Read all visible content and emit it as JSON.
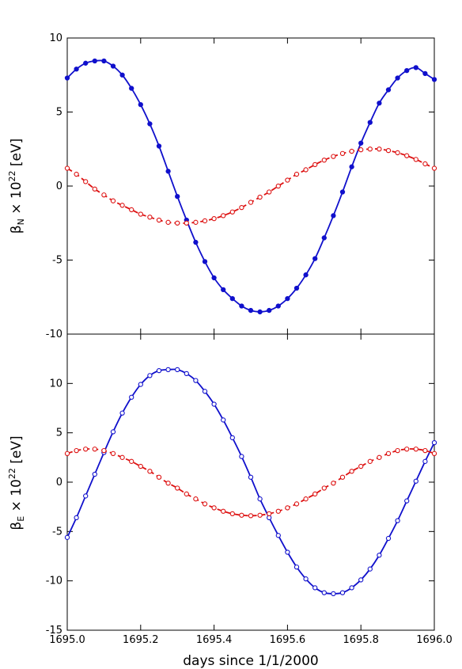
{
  "chart_data": [
    {
      "type": "line",
      "panel": "top",
      "ylabel": {
        "base": "β",
        "sub": "N",
        "mid": " × 10",
        "sup": "22",
        "tail": " [eV]"
      },
      "xlim": [
        1695.0,
        1696.0
      ],
      "ylim": [
        -10,
        10
      ],
      "yticks": [
        10,
        5,
        0,
        -5,
        -10
      ],
      "ytick_labels": [
        "10",
        "5",
        "0",
        "-5",
        "-10"
      ],
      "grid": false,
      "series": [
        {
          "marker": "filled-circle",
          "line": "solid",
          "color": "#1010cc",
          "x": [
            1695.0,
            1695.025,
            1695.05,
            1695.075,
            1695.1,
            1695.125,
            1695.15,
            1695.175,
            1695.2,
            1695.225,
            1695.25,
            1695.275,
            1695.3,
            1695.325,
            1695.35,
            1695.375,
            1695.4,
            1695.425,
            1695.45,
            1695.475,
            1695.5,
            1695.525,
            1695.55,
            1695.575,
            1695.6,
            1695.625,
            1695.65,
            1695.675,
            1695.7,
            1695.725,
            1695.75,
            1695.775,
            1695.8,
            1695.825,
            1695.85,
            1695.875,
            1695.9,
            1695.925,
            1695.95,
            1695.975,
            1696.0
          ],
          "y": [
            7.3,
            7.9,
            8.3,
            8.45,
            8.45,
            8.1,
            7.5,
            6.6,
            5.5,
            4.2,
            2.7,
            1.0,
            -0.7,
            -2.3,
            -3.8,
            -5.1,
            -6.2,
            -7.0,
            -7.6,
            -8.1,
            -8.4,
            -8.5,
            -8.4,
            -8.1,
            -7.6,
            -6.9,
            -6.0,
            -4.9,
            -3.5,
            -2.0,
            -0.4,
            1.3,
            2.9,
            4.3,
            5.6,
            6.5,
            7.3,
            7.8,
            8.0,
            7.6,
            7.2
          ]
        },
        {
          "marker": "open-circle",
          "line": "dashed",
          "color": "#dd1010",
          "x": [
            1695.0,
            1695.025,
            1695.05,
            1695.075,
            1695.1,
            1695.125,
            1695.15,
            1695.175,
            1695.2,
            1695.225,
            1695.25,
            1695.275,
            1695.3,
            1695.325,
            1695.35,
            1695.375,
            1695.4,
            1695.425,
            1695.45,
            1695.475,
            1695.5,
            1695.525,
            1695.55,
            1695.575,
            1695.6,
            1695.625,
            1695.65,
            1695.675,
            1695.7,
            1695.725,
            1695.75,
            1695.775,
            1695.8,
            1695.825,
            1695.85,
            1695.875,
            1695.9,
            1695.925,
            1695.95,
            1695.975,
            1696.0
          ],
          "y": [
            1.2,
            0.8,
            0.3,
            -0.2,
            -0.6,
            -1.0,
            -1.3,
            -1.6,
            -1.9,
            -2.1,
            -2.3,
            -2.45,
            -2.5,
            -2.5,
            -2.45,
            -2.35,
            -2.2,
            -2.0,
            -1.75,
            -1.45,
            -1.1,
            -0.75,
            -0.4,
            0.0,
            0.4,
            0.8,
            1.1,
            1.45,
            1.75,
            2.0,
            2.2,
            2.35,
            2.45,
            2.5,
            2.5,
            2.4,
            2.25,
            2.05,
            1.8,
            1.5,
            1.2
          ]
        }
      ]
    },
    {
      "type": "line",
      "panel": "bottom",
      "ylabel": {
        "base": "β",
        "sub": "E",
        "mid": " × 10",
        "sup": "22",
        "tail": " [eV]"
      },
      "xlabel": "days since 1/1/2000",
      "xlim": [
        1695.0,
        1696.0
      ],
      "ylim": [
        -15,
        15
      ],
      "xticks": [
        1695.0,
        1695.2,
        1695.4,
        1695.6,
        1695.8,
        1696.0
      ],
      "xtick_labels": [
        "1695.0",
        "1695.2",
        "1695.4",
        "1695.6",
        "1695.8",
        "1696.0"
      ],
      "yticks": [
        10,
        5,
        0,
        -5,
        -10,
        -15
      ],
      "ytick_labels": [
        "10",
        "5",
        "0",
        "-5",
        "-10",
        "-15"
      ],
      "grid": false,
      "series": [
        {
          "marker": "open-circle",
          "line": "solid",
          "color": "#1010cc",
          "x": [
            1695.0,
            1695.025,
            1695.05,
            1695.075,
            1695.1,
            1695.125,
            1695.15,
            1695.175,
            1695.2,
            1695.225,
            1695.25,
            1695.275,
            1695.3,
            1695.325,
            1695.35,
            1695.375,
            1695.4,
            1695.425,
            1695.45,
            1695.475,
            1695.5,
            1695.525,
            1695.55,
            1695.575,
            1695.6,
            1695.625,
            1695.65,
            1695.675,
            1695.7,
            1695.725,
            1695.75,
            1695.775,
            1695.8,
            1695.825,
            1695.85,
            1695.875,
            1695.9,
            1695.925,
            1695.95,
            1695.975,
            1696.0
          ],
          "y": [
            -5.6,
            -3.6,
            -1.4,
            0.8,
            3.0,
            5.1,
            7.0,
            8.6,
            9.9,
            10.8,
            11.3,
            11.4,
            11.4,
            11.0,
            10.3,
            9.2,
            7.9,
            6.3,
            4.5,
            2.6,
            0.5,
            -1.7,
            -3.6,
            -5.4,
            -7.1,
            -8.6,
            -9.8,
            -10.7,
            -11.2,
            -11.3,
            -11.2,
            -10.7,
            -9.9,
            -8.8,
            -7.4,
            -5.7,
            -3.9,
            -1.9,
            0.1,
            2.1,
            4.0
          ]
        },
        {
          "marker": "open-circle",
          "line": "dashed",
          "color": "#dd1010",
          "x": [
            1695.0,
            1695.025,
            1695.05,
            1695.075,
            1695.1,
            1695.125,
            1695.15,
            1695.175,
            1695.2,
            1695.225,
            1695.25,
            1695.275,
            1695.3,
            1695.325,
            1695.35,
            1695.375,
            1695.4,
            1695.425,
            1695.45,
            1695.475,
            1695.5,
            1695.525,
            1695.55,
            1695.575,
            1695.6,
            1695.625,
            1695.65,
            1695.675,
            1695.7,
            1695.725,
            1695.75,
            1695.775,
            1695.8,
            1695.825,
            1695.85,
            1695.875,
            1695.9,
            1695.925,
            1695.95,
            1695.975,
            1696.0
          ],
          "y": [
            2.9,
            3.2,
            3.35,
            3.35,
            3.2,
            2.9,
            2.5,
            2.1,
            1.6,
            1.1,
            0.5,
            -0.1,
            -0.6,
            -1.2,
            -1.7,
            -2.2,
            -2.6,
            -2.95,
            -3.2,
            -3.35,
            -3.4,
            -3.35,
            -3.2,
            -2.95,
            -2.6,
            -2.2,
            -1.7,
            -1.2,
            -0.6,
            -0.1,
            0.5,
            1.1,
            1.6,
            2.1,
            2.5,
            2.9,
            3.2,
            3.35,
            3.35,
            3.2,
            2.9
          ]
        }
      ]
    }
  ]
}
